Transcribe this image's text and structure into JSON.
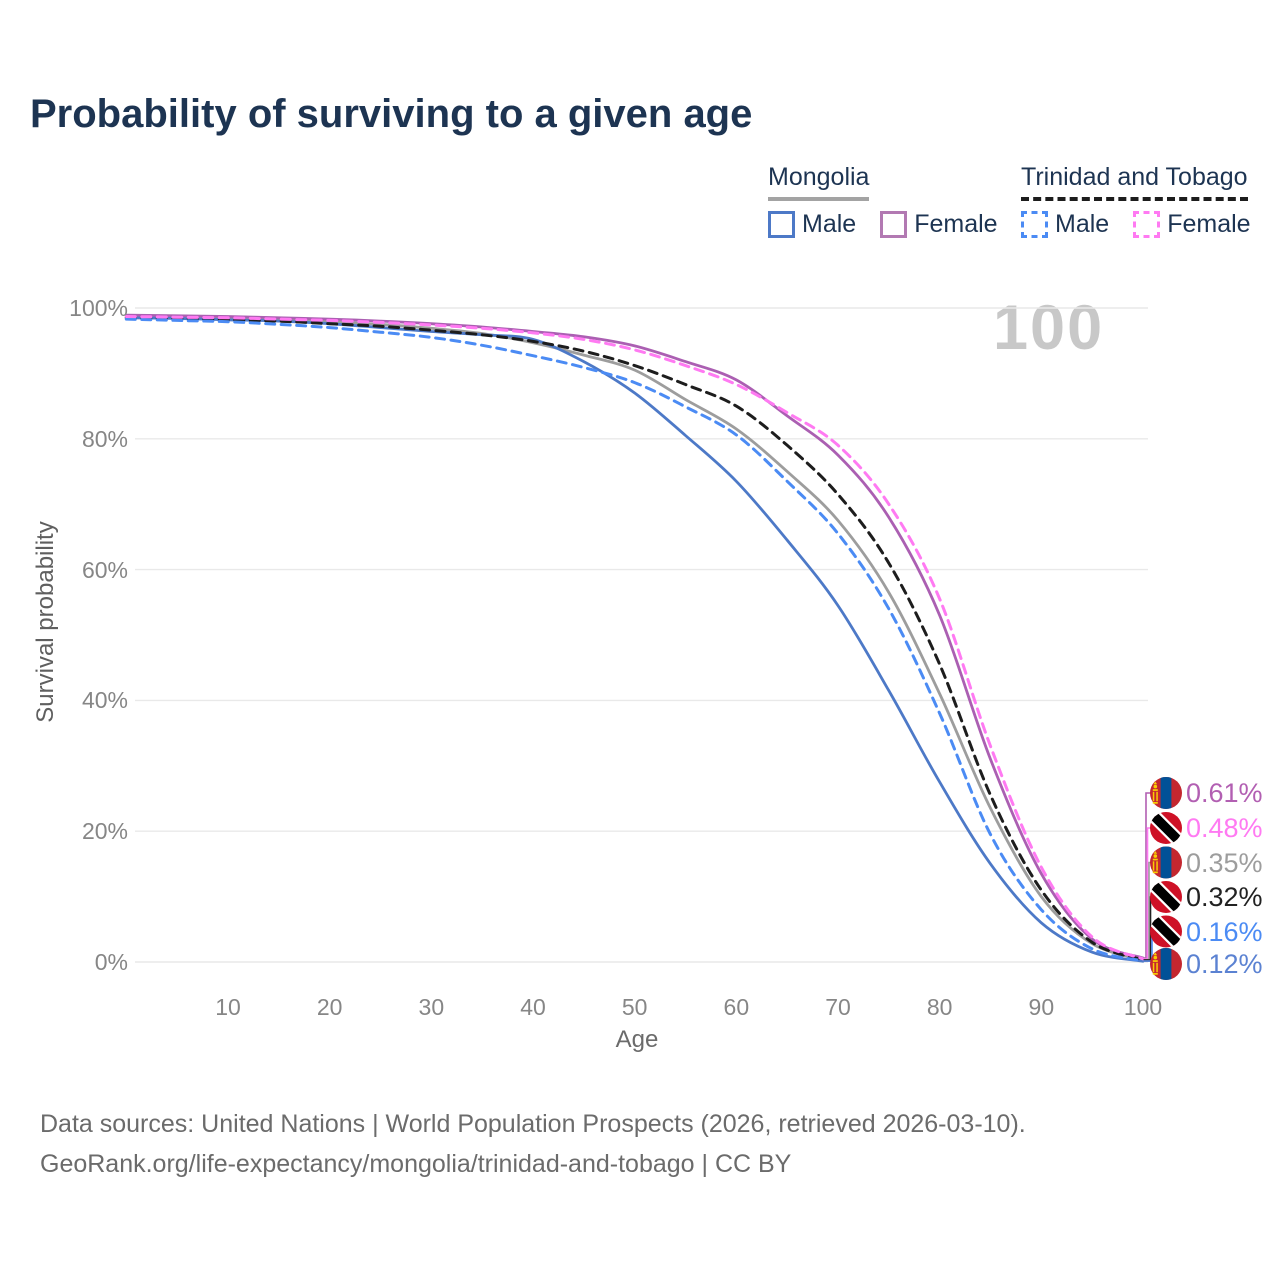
{
  "title": "Probability of surviving to a given age",
  "watermark_age_label": "100",
  "legend": {
    "groups": [
      {
        "name": "Mongolia",
        "line_style": "solid",
        "line_color": "#a3a3a3",
        "items": [
          {
            "label": "Male",
            "color": "#4d79c7",
            "style": "solid"
          },
          {
            "label": "Female",
            "color": "#b279b2",
            "style": "solid"
          }
        ]
      },
      {
        "name": "Trinidad and Tobago",
        "line_style": "dashed",
        "line_color": "#1d1d1d",
        "items": [
          {
            "label": "Male",
            "color": "#4b8bf4",
            "style": "dashed"
          },
          {
            "label": "Female",
            "color": "#ff7af2",
            "style": "dashed"
          }
        ]
      }
    ]
  },
  "chart_data": {
    "type": "line",
    "title": "Probability of surviving to a given age",
    "xlabel": "Age",
    "ylabel": "Survival probability",
    "xlim": [
      0,
      100
    ],
    "ylim": [
      0,
      100
    ],
    "xticks": [
      10,
      20,
      30,
      40,
      50,
      60,
      70,
      80,
      90,
      100
    ],
    "yticks": [
      0,
      20,
      40,
      60,
      80,
      100
    ],
    "ytick_suffix": "%",
    "grid": "horizontal",
    "legend_position": "top-right",
    "x": [
      0,
      5,
      10,
      15,
      20,
      25,
      30,
      35,
      40,
      45,
      50,
      55,
      60,
      65,
      70,
      75,
      80,
      85,
      90,
      95,
      100
    ],
    "series": [
      {
        "name": "Mongolia Both sexes",
        "color": "#9d9d9d",
        "dash": "solid",
        "end_label": "0.35%",
        "values": [
          98.7,
          98.6,
          98.4,
          98.2,
          97.9,
          97.5,
          96.9,
          96.1,
          94.7,
          92.8,
          90.5,
          86.0,
          81.5,
          75.0,
          67.5,
          56.5,
          41.0,
          23.5,
          10.0,
          2.8,
          0.35
        ]
      },
      {
        "name": "Mongolia Female",
        "color": "#ab5fb2",
        "dash": "solid",
        "end_label": "0.61%",
        "values": [
          98.9,
          98.8,
          98.7,
          98.5,
          98.3,
          98.0,
          97.6,
          97.1,
          96.4,
          95.6,
          94.2,
          91.8,
          89.0,
          83.5,
          77.5,
          68.0,
          53.0,
          31.0,
          13.5,
          3.5,
          0.61
        ]
      },
      {
        "name": "Mongolia Male",
        "color": "#4d79c7",
        "dash": "solid",
        "end_label": "0.12%",
        "values": [
          98.5,
          98.4,
          98.2,
          98.0,
          97.6,
          97.0,
          96.4,
          95.9,
          95.2,
          91.8,
          87.0,
          80.5,
          73.5,
          64.5,
          54.5,
          41.5,
          27.5,
          15.0,
          6.0,
          1.5,
          0.12
        ]
      },
      {
        "name": "Trinidad and Tobago Both sexes",
        "color": "#1d1d1d",
        "dash": "dashed",
        "end_label": "0.32%",
        "values": [
          98.5,
          98.4,
          98.2,
          98.0,
          97.6,
          97.2,
          96.6,
          95.9,
          94.9,
          93.4,
          91.2,
          88.3,
          85.0,
          79.0,
          71.5,
          61.0,
          45.5,
          25.5,
          11.0,
          3.0,
          0.32
        ]
      },
      {
        "name": "Trinidad and Tobago Male",
        "color": "#4b8bf4",
        "dash": "dashed",
        "end_label": "0.16%",
        "values": [
          98.3,
          98.1,
          97.9,
          97.5,
          97.0,
          96.3,
          95.5,
          94.3,
          92.7,
          90.9,
          88.6,
          84.9,
          80.6,
          73.5,
          65.5,
          54.0,
          38.0,
          19.5,
          8.0,
          2.0,
          0.16
        ]
      },
      {
        "name": "Trinidad and Tobago Female",
        "color": "#ff7af2",
        "dash": "dashed",
        "end_label": "0.48%",
        "values": [
          98.7,
          98.6,
          98.5,
          98.3,
          98.1,
          97.8,
          97.4,
          96.9,
          96.2,
          95.2,
          93.6,
          91.2,
          88.3,
          84.0,
          79.0,
          70.0,
          55.5,
          33.0,
          14.5,
          3.8,
          0.48
        ]
      }
    ]
  },
  "end_labels": [
    {
      "value": "0.61%",
      "flag": "mongolia",
      "color": "#b25fb2",
      "series": "Mongolia Female"
    },
    {
      "value": "0.48%",
      "flag": "trinidad-and-tobago",
      "color": "#ff7af2",
      "series": "Trinidad and Tobago Female"
    },
    {
      "value": "0.35%",
      "flag": "mongolia",
      "color": "#9d9d9d",
      "series": "Mongolia Both sexes"
    },
    {
      "value": "0.32%",
      "flag": "trinidad-and-tobago",
      "color": "#222222",
      "series": "Trinidad and Tobago Both sexes"
    },
    {
      "value": "0.16%",
      "flag": "trinidad-and-tobago",
      "color": "#4b8bf4",
      "series": "Trinidad and Tobago Male"
    },
    {
      "value": "0.12%",
      "flag": "mongolia",
      "color": "#5b82d2",
      "series": "Mongolia Male"
    }
  ],
  "footer": {
    "line1": "Data sources: United Nations | World Population Prospects (2026, retrieved 2026-03-10).",
    "line2": "GeoRank.org/life-expectancy/mongolia/trinidad-and-tobago | CC BY"
  }
}
